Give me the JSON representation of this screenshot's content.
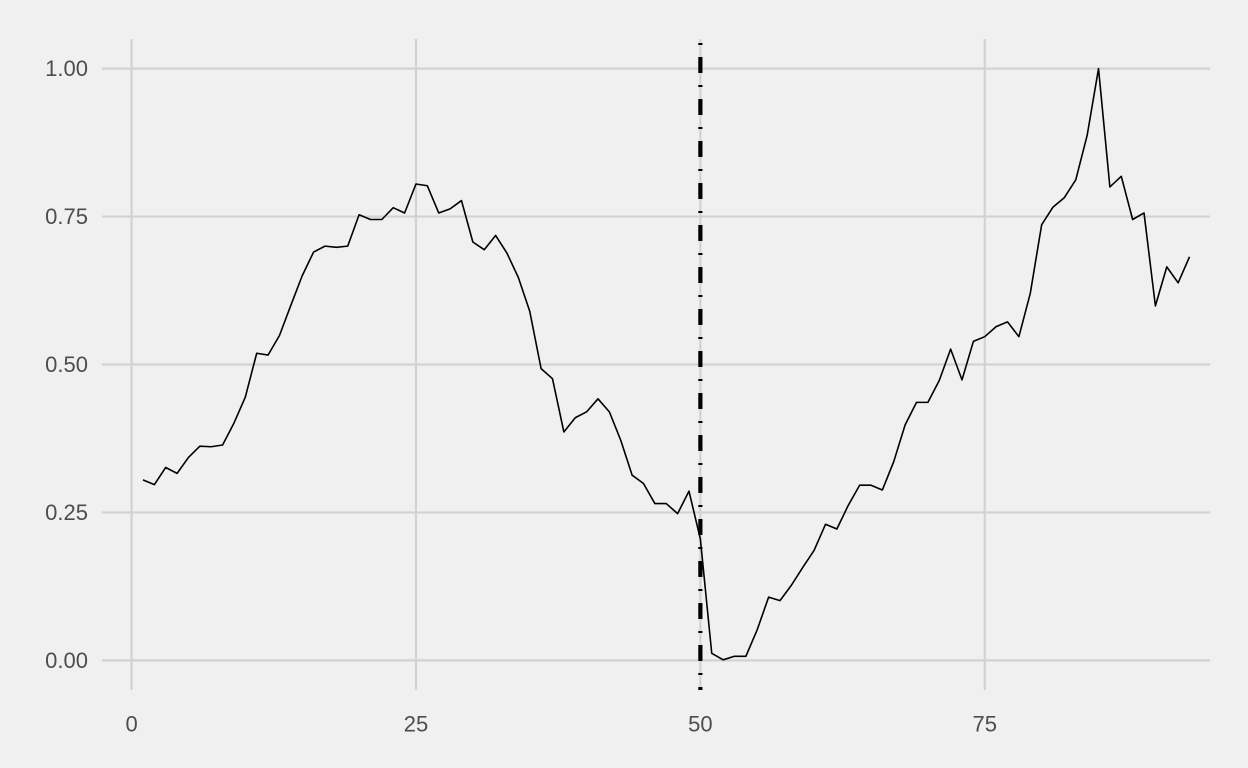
{
  "chart_data": {
    "type": "line",
    "title": "",
    "xlabel": "",
    "ylabel": "",
    "xlim": [
      -2.6,
      94.8
    ],
    "ylim": [
      -0.05,
      1.05
    ],
    "x_ticks": [
      0,
      25,
      50,
      75
    ],
    "x_tick_labels": [
      "0",
      "25",
      "50",
      "75"
    ],
    "y_ticks": [
      0,
      0.25,
      0.5,
      0.75,
      1.0
    ],
    "y_tick_labels": [
      "0.00",
      "0.25",
      "0.50",
      "0.75",
      "1.00"
    ],
    "grid": true,
    "legend": "none",
    "vertical_line": {
      "x": 50,
      "style": "dotdash",
      "color": "#000000"
    },
    "series": [
      {
        "color": "#000000",
        "x": [
          1,
          2,
          3,
          4,
          5,
          6,
          7,
          8,
          9,
          10,
          11,
          12,
          13,
          14,
          15,
          16,
          17,
          18,
          19,
          20,
          21,
          22,
          23,
          24,
          25,
          26,
          27,
          28,
          29,
          30,
          31,
          32,
          33,
          34,
          35,
          36,
          37,
          38,
          39,
          40,
          41,
          42,
          43,
          44,
          45,
          46,
          47,
          48,
          49,
          50,
          51,
          52,
          53,
          54,
          55,
          56,
          57,
          58,
          59,
          60,
          61,
          62,
          63,
          64,
          65,
          66,
          67,
          68,
          69,
          70,
          71,
          72,
          73,
          74,
          75,
          76,
          77,
          78,
          79,
          80,
          81,
          82,
          83,
          84,
          85,
          86,
          87,
          88,
          89,
          90,
          91,
          92,
          93
        ],
        "values": [
          0.305,
          0.297,
          0.326,
          0.316,
          0.343,
          0.362,
          0.361,
          0.364,
          0.401,
          0.445,
          0.519,
          0.516,
          0.549,
          0.6,
          0.65,
          0.69,
          0.7,
          0.698,
          0.7,
          0.753,
          0.745,
          0.745,
          0.765,
          0.756,
          0.805,
          0.802,
          0.756,
          0.763,
          0.777,
          0.707,
          0.694,
          0.718,
          0.688,
          0.647,
          0.59,
          0.493,
          0.476,
          0.386,
          0.41,
          0.42,
          0.442,
          0.42,
          0.372,
          0.313,
          0.299,
          0.265,
          0.265,
          0.248,
          0.286,
          0.205,
          0.012,
          0.001,
          0.007,
          0.007,
          0.052,
          0.107,
          0.101,
          0.127,
          0.157,
          0.186,
          0.23,
          0.222,
          0.262,
          0.296,
          0.296,
          0.288,
          0.336,
          0.398,
          0.436,
          0.436,
          0.473,
          0.526,
          0.474,
          0.539,
          0.547,
          0.564,
          0.572,
          0.547,
          0.62,
          0.736,
          0.766,
          0.782,
          0.812,
          0.887,
          1.0,
          0.8,
          0.818,
          0.745,
          0.756,
          0.599,
          0.665,
          0.638,
          0.682
        ]
      }
    ]
  }
}
